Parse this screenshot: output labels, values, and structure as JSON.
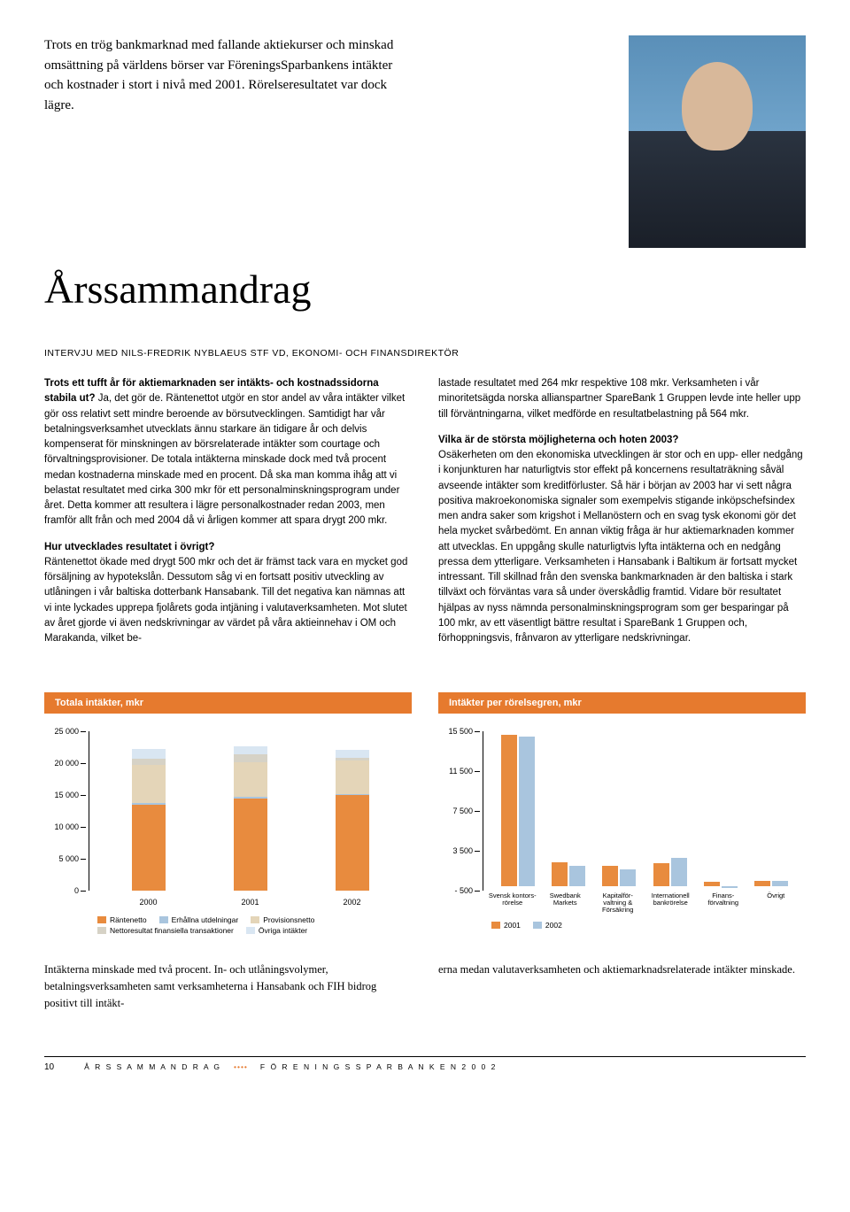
{
  "intro": "Trots en trög bankmarknad med fallande aktiekurser och minskad omsättning på världens börser var FöreningsSparbankens intäkter och kostnader i stort i nivå med 2001. Rörelseresultatet var dock lägre.",
  "title": "Årssammandrag",
  "subhead": "INTERVJU MED NILS-FREDRIK NYBLAEUS STF VD, EKONOMI- OCH FINANSDIREKTÖR",
  "col1": {
    "q1": "Trots ett tufft år för aktiemarknaden ser intäkts- och kostnadssidorna stabila ut?",
    "a1": "Ja, det gör de. Räntenettot utgör en stor andel av våra intäkter vilket gör oss relativt sett mindre beroende av börsutvecklingen. Samtidigt har vår betalningsverksamhet utvecklats ännu starkare än tidigare år och delvis kompenserat för minskningen av börsrelaterade intäkter som courtage och förvaltningsprovisioner. De totala intäkterna minskade dock med två procent medan kostnaderna minskade med en procent. Då ska man komma ihåg att vi belastat resultatet med cirka 300 mkr för ett personalminskningsprogram under året. Detta kommer att resultera i lägre personalkostnader redan 2003, men framför allt från och med 2004 då vi årligen kommer att spara drygt 200 mkr.",
    "q2": "Hur utvecklades resultatet i övrigt?",
    "a2": "Räntenettot ökade med drygt 500 mkr och det är främst tack vara en mycket god försäljning av hypotekslån. Dessutom såg vi en fortsatt positiv utveckling av utlåningen i vår baltiska dotterbank Hansabank. Till det negativa kan nämnas att vi inte lyckades upprepa fjolårets goda intjäning i valutaverksamheten. Mot slutet av året gjorde vi även nedskrivningar av värdet på våra aktieinnehav i OM och Marakanda, vilket be-"
  },
  "col2": {
    "p1": "lastade resultatet med 264 mkr respektive 108 mkr. Verksamheten i vår minoritetsägda norska allianspartner SpareBank 1 Gruppen levde inte heller upp till förväntningarna, vilket medförde en resultatbelastning på 564 mkr.",
    "q3": "Vilka är de största möjligheterna och hoten 2003?",
    "a3": "Osäkerheten om den ekonomiska utvecklingen är stor och en upp- eller nedgång i konjunkturen har naturligtvis stor effekt på koncernens resultaträkning såväl avseende intäkter som kreditförluster. Så här i början av 2003 har vi sett några positiva makroekonomiska signaler som exempelvis stigande inköpschefsindex men andra saker som krigshot i Mellanöstern och en svag tysk ekonomi gör det hela mycket svårbedömt. En annan viktig fråga är hur aktiemarknaden kommer att utvecklas. En uppgång skulle naturligtvis lyfta intäkterna och en nedgång pressa dem ytterligare. Verksamheten i Hansabank i Baltikum är fortsatt mycket intressant. Till skillnad från den svenska bankmarknaden är den baltiska i stark tillväxt och förväntas vara så under överskådlig framtid. Vidare bör resultatet hjälpas av nyss nämnda personalminskningsprogram som ger besparingar på 100 mkr, av ett väsentligt bättre resultat i SpareBank 1 Gruppen och, förhoppningsvis, frånvaron av ytterligare nedskrivningar."
  },
  "chart1": {
    "title": "Totala intäkter, mkr",
    "ymax": 25000,
    "yticks": [
      25000,
      20000,
      15000,
      10000,
      5000,
      0
    ],
    "ytick_labels": [
      "25 000",
      "20 000",
      "15 000",
      "10 000",
      "5 000",
      "0"
    ],
    "categories": [
      "2000",
      "2001",
      "2002"
    ],
    "series": [
      {
        "name": "Räntenetto",
        "color": "#e88b3e",
        "values": [
          13500,
          14500,
          15000
        ]
      },
      {
        "name": "Erhållna utdelningar",
        "color": "#a9c5de",
        "values": [
          300,
          200,
          200
        ]
      },
      {
        "name": "Provisionsnetto",
        "color": "#e4d5b8",
        "values": [
          6000,
          5500,
          5200
        ]
      },
      {
        "name": "Nettoresultat finansiella transaktioner",
        "color": "#d6d2c6",
        "values": [
          1000,
          1200,
          500
        ]
      },
      {
        "name": "Övriga intäkter",
        "color": "#d9e6f2",
        "values": [
          1500,
          1300,
          1200
        ]
      }
    ],
    "legend_labels": [
      "Räntenetto",
      "Erhållna utdelningar",
      "Provisionsnetto",
      "Nettoresultat finansiella transaktioner",
      "Övriga intäkter"
    ]
  },
  "chart2": {
    "title": "Intäkter per rörelsegren, mkr",
    "ymin": -500,
    "ymax": 15500,
    "yticks": [
      15500,
      11500,
      7500,
      3500,
      -500
    ],
    "ytick_labels": [
      "15 500",
      "11 500",
      "7 500",
      "3 500",
      "- 500"
    ],
    "categories": [
      "Svensk kontors-rörelse",
      "Swedbank Markets",
      "Kapitalför-valtning & Försäkring",
      "Internationell bankrörelse",
      "Finans-förvaltning",
      "Övrigt"
    ],
    "series": [
      {
        "name": "2001",
        "color": "#e88b3e",
        "values": [
          15200,
          2400,
          2000,
          2300,
          400,
          500
        ]
      },
      {
        "name": "2002",
        "color": "#a9c5de",
        "values": [
          15000,
          2000,
          1700,
          2800,
          -200,
          500
        ]
      }
    ],
    "legend_labels": [
      "2001",
      "2002"
    ]
  },
  "closing": {
    "c1": "Intäkterna minskade med två procent. In- och utlåningsvolymer, betalningsverksamheten samt verksamheterna i Hansabank och FIH bidrog positivt till intäkt-",
    "c2": "erna medan valutaverksamheten och aktiemarknadsrelaterade intäkter minskade."
  },
  "footer": {
    "page": "10",
    "left": "Å R S S A M M A N D R A G",
    "right": "F Ö R E N I N G S S P A R B A N K E N  2 0 0 2"
  },
  "colors": {
    "orange": "#e67a2e",
    "bar_orange": "#e88b3e",
    "bar_blue": "#a9c5de",
    "bar_tan": "#e4d5b8",
    "bar_grey": "#d6d2c6",
    "bar_lightblue": "#d9e6f2"
  }
}
